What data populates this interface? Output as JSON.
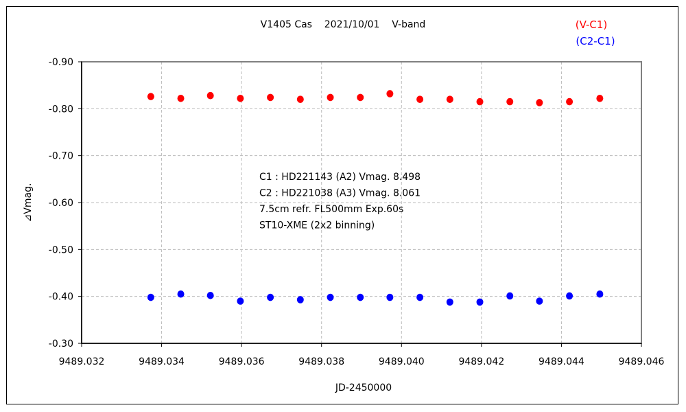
{
  "chart_data": {
    "type": "scatter",
    "title": "V1405 Cas    2021/10/01    V-band",
    "xlabel": "JD-2450000",
    "ylabel": "⊿Vmag.",
    "xlim": [
      9489.032,
      9489.046
    ],
    "ylim": [
      -0.9,
      -0.3
    ],
    "y_inverted": true,
    "grid": true,
    "legend_placement": "top-right",
    "x_ticks": [
      "9489.032",
      "9489.034",
      "9489.036",
      "9489.038",
      "9489.040",
      "9489.042",
      "9489.044",
      "9489.046"
    ],
    "y_ticks": [
      "-0.90",
      "-0.80",
      "-0.70",
      "-0.60",
      "-0.50",
      "-0.40",
      "-0.30"
    ],
    "annotations": [
      "C1 : HD221143 (A2) Vmag. 8.498",
      "C2 : HD221038 (A3) Vmag. 8.061",
      "7.5cm refr. FL500mm Exp.60s",
      "ST10-XME (2x2 binning)"
    ],
    "x": [
      9489.03373,
      9489.03448,
      9489.03522,
      9489.03597,
      9489.03672,
      9489.03747,
      9489.03822,
      9489.03897,
      9489.03971,
      9489.04046,
      9489.04121,
      9489.04196,
      9489.04271,
      9489.04345,
      9489.0442,
      9489.04496
    ],
    "series": [
      {
        "name": "(V-C1)",
        "color": "#ff0000",
        "values": [
          -0.826,
          -0.822,
          -0.828,
          -0.822,
          -0.824,
          -0.82,
          -0.824,
          -0.824,
          -0.832,
          -0.82,
          -0.82,
          -0.815,
          -0.815,
          -0.813,
          -0.815,
          -0.822
        ]
      },
      {
        "name": "(C2-C1)",
        "color": "#0000ff",
        "values": [
          -0.398,
          -0.405,
          -0.402,
          -0.39,
          -0.398,
          -0.393,
          -0.398,
          -0.398,
          -0.398,
          -0.398,
          -0.388,
          -0.388,
          -0.401,
          -0.39,
          -0.401,
          -0.405
        ]
      }
    ]
  }
}
